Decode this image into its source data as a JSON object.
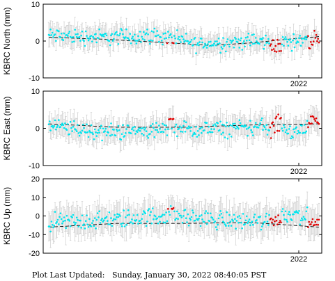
{
  "footer": {
    "label": "Plot Last Updated:",
    "value": "Sunday, January 30, 2022 08:40:05 PST"
  },
  "colors": {
    "normal_points": "#00e5ee",
    "recent_points": "#e00000",
    "error_bars": "#c8c8c8",
    "trend_line": "#000000",
    "frame": "#000000"
  },
  "chart_data": [
    {
      "type": "scatter",
      "ylabel": "KBRC North (mm)",
      "ylim": [
        -10,
        10
      ],
      "yticks": [
        -10,
        0,
        10
      ],
      "x_tick_label": "2022",
      "trend": [
        [
          0,
          1.0
        ],
        [
          0.2,
          0.5
        ],
        [
          0.45,
          -0.5
        ],
        [
          0.6,
          -1.2
        ],
        [
          0.75,
          -0.5
        ],
        [
          0.9,
          0.6
        ],
        [
          1,
          1.2
        ]
      ],
      "normal_level": [
        [
          0,
          1.5
        ],
        [
          0.2,
          1.0
        ],
        [
          0.4,
          1.5
        ],
        [
          0.55,
          -0.8
        ],
        [
          0.75,
          0.0
        ],
        [
          0.85,
          -0.5
        ],
        [
          1,
          1.0
        ]
      ],
      "normal_noise": 1.8,
      "error_bar": 2.6,
      "red_clusters": [
        [
          0.45,
          -0.5,
          0.05
        ],
        [
          0.84,
          -2.0,
          0.4
        ],
        [
          0.98,
          1.0,
          0.2
        ]
      ]
    },
    {
      "type": "scatter",
      "ylabel": "KBRC East (mm)",
      "ylim": [
        -10,
        10
      ],
      "yticks": [
        -10,
        0,
        10
      ],
      "x_tick_label": "2022",
      "trend": [
        [
          0,
          1.2
        ],
        [
          0.25,
          0.3
        ],
        [
          0.5,
          0.3
        ],
        [
          0.75,
          0.9
        ],
        [
          1,
          1.2
        ]
      ],
      "normal_level": [
        [
          0,
          0.5
        ],
        [
          0.2,
          -1.0
        ],
        [
          0.4,
          -0.5
        ],
        [
          0.6,
          -0.3
        ],
        [
          0.8,
          0.5
        ],
        [
          0.9,
          -1.0
        ],
        [
          1,
          0.5
        ]
      ],
      "normal_noise": 1.8,
      "error_bar": 2.8,
      "red_clusters": [
        [
          0.45,
          2.5,
          0.05
        ],
        [
          0.84,
          0.5,
          0.4
        ],
        [
          0.98,
          2.0,
          0.2
        ]
      ]
    },
    {
      "type": "scatter",
      "ylabel": "KBRC Up (mm)",
      "ylim": [
        -20,
        20
      ],
      "yticks": [
        -20,
        -10,
        0,
        10,
        20
      ],
      "x_tick_label": "2022",
      "trend": [
        [
          0,
          -6.0
        ],
        [
          0.25,
          -4.0
        ],
        [
          0.5,
          -4.0
        ],
        [
          0.75,
          -3.5
        ],
        [
          1,
          -6.0
        ]
      ],
      "normal_level": [
        [
          0,
          -4.0
        ],
        [
          0.25,
          -2.0
        ],
        [
          0.45,
          0.5
        ],
        [
          0.6,
          -2.0
        ],
        [
          0.8,
          -3.0
        ],
        [
          0.9,
          2.0
        ],
        [
          1,
          -2.0
        ]
      ],
      "normal_noise": 4.0,
      "error_bar": 7.0,
      "red_clusters": [
        [
          0.45,
          4.0,
          0.05
        ],
        [
          0.84,
          -2.0,
          0.4
        ],
        [
          0.98,
          -4.0,
          0.2
        ]
      ]
    }
  ]
}
